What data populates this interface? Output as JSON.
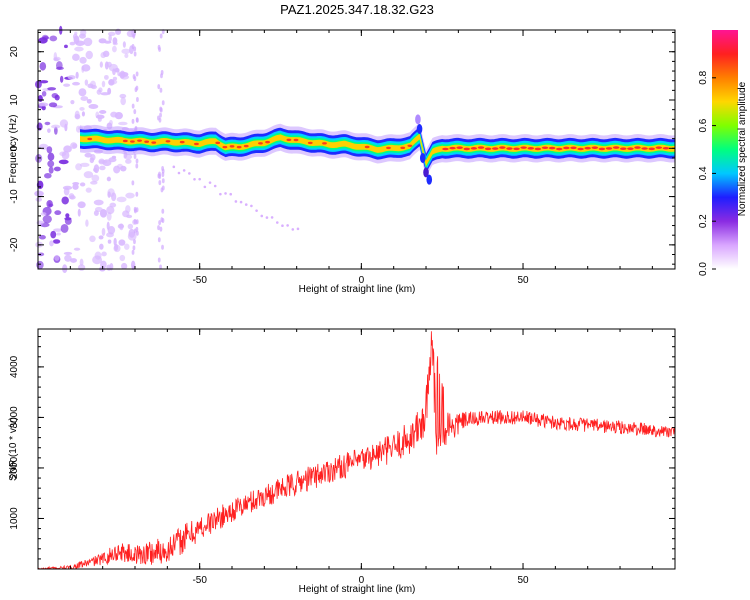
{
  "title": "PAZ1.2025.347.18.32.G23",
  "chart_data": [
    {
      "type": "heatmap",
      "name": "spectrogram",
      "xlabel": "Height of straight line (km)",
      "ylabel": "Frequency (Hz)",
      "xlim": [
        -100,
        97
      ],
      "ylim": [
        -25,
        24.5
      ],
      "x_ticks": [
        -50,
        0,
        50
      ],
      "y_ticks": [
        -20,
        -10,
        0,
        10,
        20
      ],
      "colorbar": {
        "label": "Normalized spectral amplitude",
        "range": [
          0.0,
          1.0
        ],
        "ticks": [
          0.0,
          0.2,
          0.4,
          0.6,
          0.8
        ],
        "tick_labels": [
          "0.0",
          "0.2",
          "0.4",
          "0.6",
          "0.8"
        ],
        "colors": [
          "#ffffff",
          "#d9a6ff",
          "#8a2be2",
          "#1e1eff",
          "#00c8ff",
          "#00ff7f",
          "#7fff00",
          "#ffd700",
          "#ff7f00",
          "#ff2020",
          "#ff1493"
        ]
      },
      "ridge": {
        "description_points_x": [
          -85,
          -80,
          -75,
          -70,
          -65,
          -60,
          -55,
          -50,
          -45,
          -42,
          -38,
          -35,
          -30,
          -25,
          -20,
          -15,
          -10,
          -5,
          0,
          5,
          10,
          15,
          18,
          20,
          22,
          25,
          30,
          40,
          50,
          60,
          70,
          80,
          90,
          97
        ],
        "freq_hz": [
          2.0,
          1.8,
          1.6,
          1.5,
          1.3,
          1.4,
          1.2,
          1.0,
          1.5,
          0.2,
          0.3,
          0.6,
          1.2,
          2.2,
          1.6,
          1.2,
          0.8,
          0.8,
          0.3,
          -0.2,
          0.0,
          0.4,
          2.5,
          -3.0,
          -0.8,
          0.0,
          0.0,
          0.0,
          0.0,
          0.0,
          0.0,
          0.0,
          0.0,
          0.0
        ]
      }
    },
    {
      "type": "line",
      "name": "snr",
      "xlabel": "Height of straight line (km)",
      "ylabel": "SNR (10 * v/v)",
      "xlim": [
        -100,
        97
      ],
      "ylim": [
        0,
        4750
      ],
      "x_ticks": [
        -50,
        0,
        50
      ],
      "y_ticks": [
        1000,
        2000,
        3000,
        4000
      ],
      "color": "#ff2020",
      "envelope_x": [
        -100,
        -90,
        -80,
        -75,
        -70,
        -65,
        -60,
        -55,
        -50,
        -40,
        -30,
        -20,
        -10,
        0,
        10,
        15,
        18,
        20,
        21,
        22,
        23,
        24,
        26,
        28,
        32,
        40,
        50,
        60,
        70,
        80,
        90,
        97
      ],
      "envelope_y": [
        0,
        30,
        200,
        350,
        280,
        320,
        380,
        600,
        800,
        1150,
        1450,
        1700,
        1950,
        2150,
        2400,
        2600,
        2800,
        3100,
        3600,
        4750,
        3300,
        3400,
        2900,
        2800,
        2950,
        3000,
        3000,
        2900,
        2850,
        2800,
        2750,
        2700
      ],
      "noise_amplitude": [
        20,
        40,
        120,
        200,
        180,
        300,
        250,
        300,
        250,
        220,
        230,
        250,
        250,
        250,
        300,
        350,
        400,
        500,
        700,
        900,
        1100,
        1000,
        500,
        300,
        160,
        140,
        140,
        140,
        140,
        140,
        130,
        120
      ]
    }
  ]
}
